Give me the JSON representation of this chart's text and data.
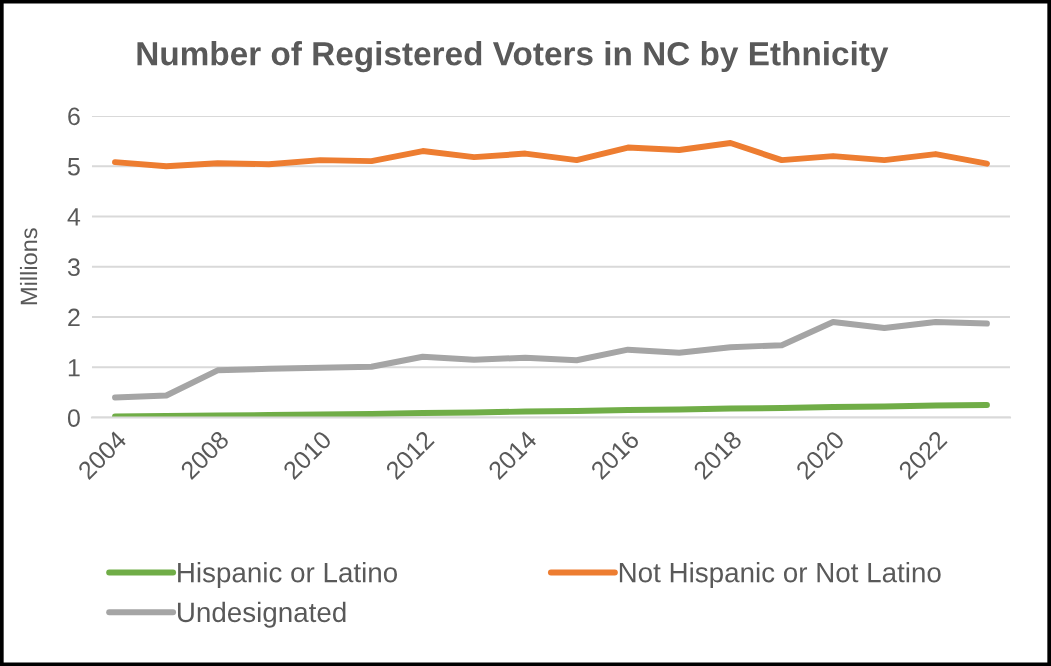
{
  "chart_data": {
    "type": "line",
    "title": "Number of Registered Voters in NC by Ethnicity",
    "ylabel": "Millions",
    "categories": [
      "2004",
      null,
      "2008",
      null,
      "2010",
      null,
      "2012",
      null,
      "2014",
      null,
      "2016",
      null,
      "2018",
      null,
      "2020",
      null,
      "2022",
      null
    ],
    "series": [
      {
        "name": "Hispanic or Latino",
        "color": "#70ad47",
        "values": [
          0.02,
          0.03,
          0.04,
          0.05,
          0.06,
          0.07,
          0.09,
          0.1,
          0.12,
          0.13,
          0.15,
          0.16,
          0.18,
          0.19,
          0.21,
          0.22,
          0.24,
          0.25
        ]
      },
      {
        "name": "Not Hispanic or Not Latino",
        "color": "#ed7d31",
        "values": [
          5.08,
          5.0,
          5.06,
          5.04,
          5.12,
          5.1,
          5.3,
          5.18,
          5.25,
          5.12,
          5.37,
          5.32,
          5.46,
          5.12,
          5.2,
          5.12,
          5.24,
          5.05
        ]
      },
      {
        "name": "Undesignated",
        "color": "#a5a5a5",
        "values": [
          0.4,
          0.44,
          0.94,
          0.97,
          0.99,
          1.01,
          1.21,
          1.15,
          1.19,
          1.14,
          1.35,
          1.29,
          1.4,
          1.44,
          1.9,
          1.78,
          1.9,
          1.87
        ]
      }
    ],
    "ylim": [
      0,
      6
    ],
    "yticks": [
      0,
      1,
      2,
      3,
      4,
      5,
      6
    ],
    "grid": "y",
    "legend": "bottom"
  }
}
